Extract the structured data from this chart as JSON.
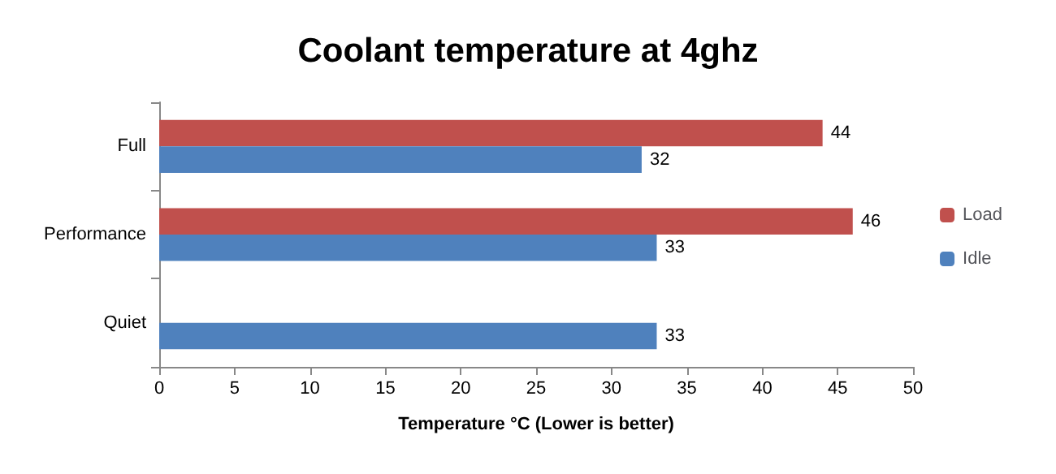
{
  "chart_data": {
    "type": "bar",
    "orientation": "horizontal",
    "title": "Coolant temperature at 4ghz",
    "xlabel": "Temperature °C (Lower is better)",
    "categories": [
      "Full",
      "Performance",
      "Quiet"
    ],
    "series": [
      {
        "name": "Load",
        "color": "#c0504d",
        "values": [
          44,
          46,
          null
        ]
      },
      {
        "name": "Idle",
        "color": "#4f81bd",
        "values": [
          32,
          33,
          33
        ]
      }
    ],
    "xlim": [
      0,
      50
    ],
    "xticks": [
      0,
      5,
      10,
      15,
      20,
      25,
      30,
      35,
      40,
      45,
      50
    ],
    "grid": false,
    "legend": "right",
    "data_labels": true
  }
}
